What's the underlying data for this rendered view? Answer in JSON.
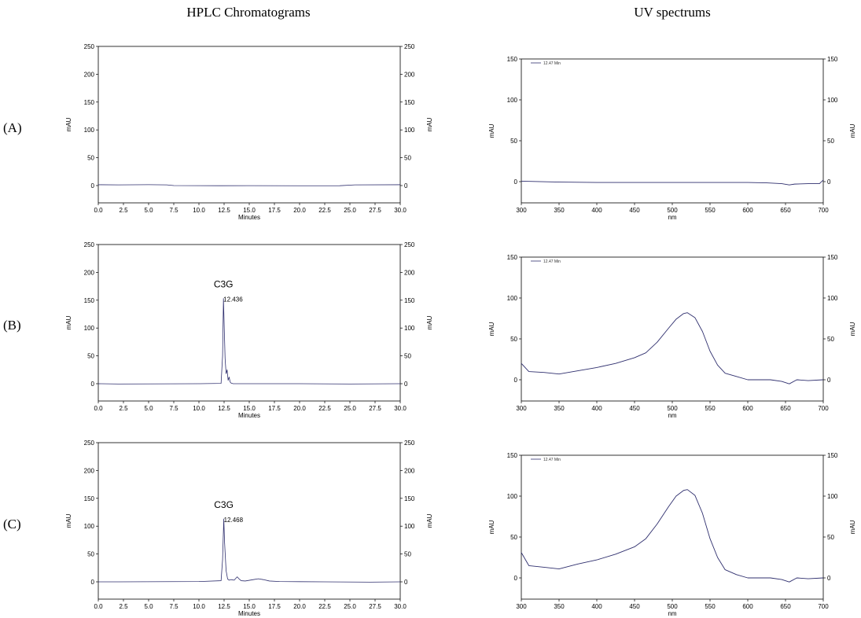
{
  "headers": {
    "hplc": "HPLC  Chromatograms",
    "uv": "UV  spectrums"
  },
  "rows": [
    "(A)",
    "(B)",
    "(C)"
  ],
  "colors": {
    "trace": "#2f2f6e",
    "frame": "#000000"
  },
  "chart_data": [
    {
      "type": "line",
      "panel": "A-hplc",
      "row": 0,
      "kind": "hplc",
      "xlabel": "Minutes",
      "ylabel": "mAU",
      "ylabel_right": "mAU",
      "xlim": [
        0,
        30
      ],
      "ylim": [
        -20,
        250
      ],
      "xticks": [
        0,
        2.5,
        5,
        7.5,
        10,
        12.5,
        15,
        17.5,
        20,
        22.5,
        25,
        27.5,
        30
      ],
      "yticks": [
        0,
        50,
        100,
        150,
        200,
        250
      ],
      "xtick_labels": [
        "0.0",
        "2.5",
        "5.0",
        "7.5",
        "10.0",
        "12.5",
        "15.0",
        "17.5",
        "20.0",
        "22.5",
        "25.0",
        "27.5",
        "30.0"
      ],
      "series": [
        {
          "x": [
            0,
            2,
            5,
            6.8,
            7.5,
            12,
            15,
            20,
            24,
            25.5,
            30
          ],
          "y": [
            1.5,
            1.2,
            1.6,
            1.2,
            0,
            -0.3,
            -0.2,
            -0.4,
            -0.3,
            1.2,
            1.5
          ]
        }
      ]
    },
    {
      "type": "line",
      "panel": "A-uv",
      "row": 0,
      "kind": "uv",
      "xlabel": "nm",
      "ylabel": "mAU",
      "ylabel_right": "mAU",
      "legend": "12.47 Min",
      "xlim": [
        300,
        700
      ],
      "ylim": [
        -10,
        170
      ],
      "xticks": [
        300,
        350,
        400,
        450,
        500,
        550,
        600,
        650,
        700
      ],
      "yticks": [
        0,
        50,
        100,
        150
      ],
      "xtick_labels": [
        "300",
        "350",
        "400",
        "450",
        "500",
        "550",
        "600",
        "650",
        "700"
      ],
      "series": [
        {
          "x": [
            300,
            350,
            400,
            450,
            500,
            550,
            600,
            625,
            645,
            655,
            662,
            680,
            695,
            700
          ],
          "y": [
            0.5,
            -0.5,
            -1,
            -1,
            -1,
            -1,
            -1,
            -1.5,
            -2.5,
            -4,
            -3,
            -2.5,
            -2.5,
            2
          ]
        }
      ]
    },
    {
      "type": "line",
      "panel": "B-hplc",
      "row": 1,
      "kind": "hplc",
      "xlabel": "Minutes",
      "ylabel": "mAU",
      "ylabel_right": "mAU",
      "annotation": "C3G",
      "peak_label": "12.436",
      "peak_x": 12.436,
      "peak_y": 153,
      "xlim": [
        0,
        30
      ],
      "ylim": [
        -20,
        250
      ],
      "xticks": [
        0,
        2.5,
        5,
        7.5,
        10,
        12.5,
        15,
        17.5,
        20,
        22.5,
        25,
        27.5,
        30
      ],
      "yticks": [
        0,
        50,
        100,
        150,
        200,
        250
      ],
      "xtick_labels": [
        "0.0",
        "2.5",
        "5.0",
        "7.5",
        "10.0",
        "12.5",
        "15.0",
        "17.5",
        "20.0",
        "22.5",
        "25.0",
        "27.5",
        "30.0"
      ],
      "series": [
        {
          "x": [
            0,
            2,
            10,
            12.2,
            12.35,
            12.436,
            12.5,
            12.6,
            12.7,
            12.8,
            12.9,
            13.0,
            13.1,
            13.2,
            13.4,
            20,
            25,
            30
          ],
          "y": [
            0,
            -0.5,
            0,
            0.5,
            50,
            153,
            110,
            45,
            18,
            25,
            6,
            12,
            3,
            1,
            0,
            0,
            -0.5,
            0
          ]
        }
      ]
    },
    {
      "type": "line",
      "panel": "B-uv",
      "row": 1,
      "kind": "uv",
      "xlabel": "nm",
      "ylabel": "mAU",
      "ylabel_right": "mAU",
      "legend": "12.47 Min",
      "xlim": [
        300,
        700
      ],
      "ylim": [
        -10,
        170
      ],
      "xticks": [
        300,
        350,
        400,
        450,
        500,
        550,
        600,
        650,
        700
      ],
      "yticks": [
        0,
        50,
        100,
        150
      ],
      "xtick_labels": [
        "300",
        "350",
        "400",
        "450",
        "500",
        "550",
        "600",
        "650",
        "700"
      ],
      "series": [
        {
          "x": [
            300,
            310,
            330,
            350,
            375,
            400,
            425,
            450,
            465,
            480,
            495,
            505,
            515,
            520,
            530,
            540,
            550,
            560,
            570,
            585,
            600,
            630,
            645,
            655,
            665,
            680,
            700
          ],
          "y": [
            20,
            10,
            9,
            7,
            11,
            15,
            20,
            27,
            33,
            46,
            63,
            74,
            81,
            82,
            76,
            59,
            35,
            18,
            8,
            4,
            0,
            0,
            -2,
            -5,
            0,
            -1,
            0
          ]
        }
      ]
    },
    {
      "type": "line",
      "panel": "C-hplc",
      "row": 2,
      "kind": "hplc",
      "xlabel": "Minutes",
      "ylabel": "mAU",
      "ylabel_right": "mAU",
      "annotation": "C3G",
      "peak_label": "12.468",
      "peak_x": 12.468,
      "peak_y": 113,
      "xlim": [
        0,
        30
      ],
      "ylim": [
        -20,
        250
      ],
      "xticks": [
        0,
        2.5,
        5,
        7.5,
        10,
        12.5,
        15,
        17.5,
        20,
        22.5,
        25,
        27.5,
        30
      ],
      "yticks": [
        0,
        50,
        100,
        150,
        200,
        250
      ],
      "xtick_labels": [
        "0.0",
        "2.5",
        "5.0",
        "7.5",
        "10.0",
        "12.5",
        "15.0",
        "17.5",
        "20.0",
        "22.5",
        "25.0",
        "27.5",
        "30.0"
      ],
      "series": [
        {
          "x": [
            0,
            2,
            10,
            12.2,
            12.35,
            12.468,
            12.55,
            12.7,
            12.85,
            13.0,
            13.2,
            13.5,
            13.8,
            14.0,
            14.2,
            14.6,
            15.4,
            15.9,
            16.4,
            17.0,
            18,
            22.5,
            27,
            30
          ],
          "y": [
            0,
            0,
            0.5,
            2,
            40,
            113,
            70,
            20,
            5,
            3,
            4,
            3,
            9,
            5,
            2,
            1.5,
            4,
            5.5,
            4,
            1.5,
            0.5,
            0,
            -0.5,
            0
          ]
        }
      ]
    },
    {
      "type": "line",
      "panel": "C-uv",
      "row": 2,
      "kind": "uv",
      "xlabel": "nm",
      "ylabel": "mAU",
      "ylabel_right": "mAU",
      "legend": "12.47 Min",
      "xlim": [
        300,
        700
      ],
      "ylim": [
        -10,
        170
      ],
      "xticks": [
        300,
        350,
        400,
        450,
        500,
        550,
        600,
        650,
        700
      ],
      "yticks": [
        0,
        50,
        100,
        150
      ],
      "xtick_labels": [
        "300",
        "350",
        "400",
        "450",
        "500",
        "550",
        "600",
        "650",
        "700"
      ],
      "series": [
        {
          "x": [
            300,
            310,
            330,
            350,
            375,
            400,
            425,
            450,
            465,
            480,
            495,
            505,
            515,
            520,
            530,
            540,
            550,
            560,
            570,
            585,
            600,
            630,
            645,
            655,
            665,
            680,
            700
          ],
          "y": [
            31,
            15,
            13,
            11,
            17,
            22,
            29,
            38,
            48,
            66,
            87,
            100,
            107,
            108,
            101,
            79,
            48,
            25,
            10,
            4,
            0,
            0,
            -2,
            -5,
            0,
            -1,
            0
          ]
        }
      ]
    }
  ]
}
